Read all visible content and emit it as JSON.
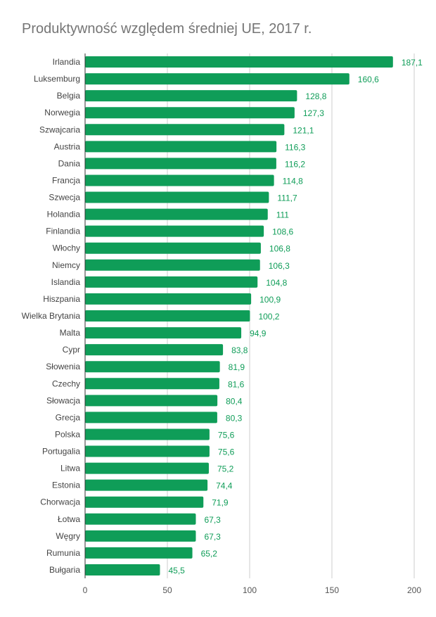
{
  "chart_data": {
    "type": "bar",
    "orientation": "horizontal",
    "title": "Produktywność względem średniej UE, 2017 r.",
    "xlabel": "",
    "ylabel": "",
    "xlim": [
      0,
      200
    ],
    "xticks": [
      0,
      50,
      100,
      150,
      200
    ],
    "grid": true,
    "legend": "none",
    "bar_color": "#0f9d58",
    "label_color": "#0f9d58",
    "categories": [
      "Irlandia",
      "Luksemburg",
      "Belgia",
      "Norwegia",
      "Szwajcaria",
      "Austria",
      "Dania",
      "Francja",
      "Szwecja",
      "Holandia",
      "Finlandia",
      "Włochy",
      "Niemcy",
      "Islandia",
      "Hiszpania",
      "Wielka Brytania",
      "Malta",
      "Cypr",
      "Słowenia",
      "Czechy",
      "Słowacja",
      "Grecja",
      "Polska",
      "Portugalia",
      "Litwa",
      "Estonia",
      "Chorwacja",
      "Łotwa",
      "Węgry",
      "Rumunia",
      "Bułgaria"
    ],
    "values": [
      187.1,
      160.6,
      128.8,
      127.3,
      121.1,
      116.3,
      116.2,
      114.8,
      111.7,
      111,
      108.6,
      106.8,
      106.3,
      104.8,
      100.9,
      100.2,
      94.9,
      83.8,
      81.9,
      81.6,
      80.4,
      80.3,
      75.6,
      75.6,
      75.2,
      74.4,
      71.9,
      67.3,
      67.3,
      65.2,
      45.5
    ],
    "value_labels": [
      "187,1",
      "160,6",
      "128,8",
      "127,3",
      "121,1",
      "116,3",
      "116,2",
      "114,8",
      "111,7",
      "111",
      "108,6",
      "106,8",
      "106,3",
      "104,8",
      "100,9",
      "100,2",
      "94,9",
      "83,8",
      "81,9",
      "81,6",
      "80,4",
      "80,3",
      "75,6",
      "75,6",
      "75,2",
      "74,4",
      "71,9",
      "67,3",
      "67,3",
      "65,2",
      "45,5"
    ]
  }
}
